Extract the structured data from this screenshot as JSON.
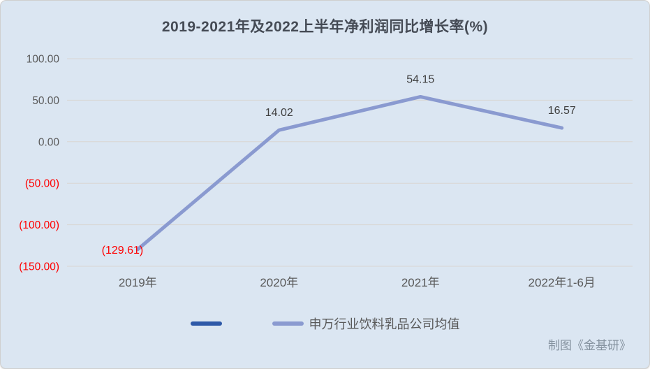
{
  "chart_data": {
    "type": "line",
    "title": "2019-2021年及2022上半年净利润同比增长率(%)",
    "xlabel": "",
    "ylabel": "",
    "categories": [
      "2019年",
      "2020年",
      "2021年",
      "2022年1-6月"
    ],
    "series": [
      {
        "name": "申万行业饮料乳品公司均值",
        "color": "#8a9ad0",
        "values": [
          -129.61,
          14.02,
          54.15,
          16.57
        ],
        "point_labels": [
          "(129.61)",
          "14.02",
          "54.15",
          "16.57"
        ],
        "point_label_colors": [
          "#ff0000",
          "#404040",
          "#404040",
          "#404040"
        ],
        "point_label_positions": [
          "left",
          "above",
          "above",
          "above"
        ]
      }
    ],
    "legend": [
      {
        "label": "",
        "color": "#2e59a8"
      },
      {
        "label": "申万行业饮料乳品公司均值",
        "color": "#8a9ad0"
      }
    ],
    "legend_position": "bottom",
    "grid": true,
    "ylim": [
      -150,
      100
    ],
    "y_ticks": [
      {
        "value": 100,
        "label": "100.00",
        "color": "#595959"
      },
      {
        "value": 50,
        "label": "50.00",
        "color": "#595959"
      },
      {
        "value": 0,
        "label": "0.00",
        "color": "#595959"
      },
      {
        "value": -50,
        "label": "(50.00)",
        "color": "#ff0000"
      },
      {
        "value": -100,
        "label": "(100.00)",
        "color": "#ff0000"
      },
      {
        "value": -150,
        "label": "(150.00)",
        "color": "#ff0000"
      }
    ],
    "x_tick_color": "#595959"
  },
  "footer": {
    "credit": "制图《金基研》"
  },
  "colors": {
    "card_background": "#dbe6f2",
    "card_border": "#cfcfcf",
    "title_text": "#454b55",
    "gridline": "#d9d6d2",
    "axis_text": "#595959",
    "negative_text": "#ff0000",
    "series_line": "#8a9ad0",
    "legend_dark_swatch": "#2e59a8",
    "credit_text": "#85929f"
  }
}
